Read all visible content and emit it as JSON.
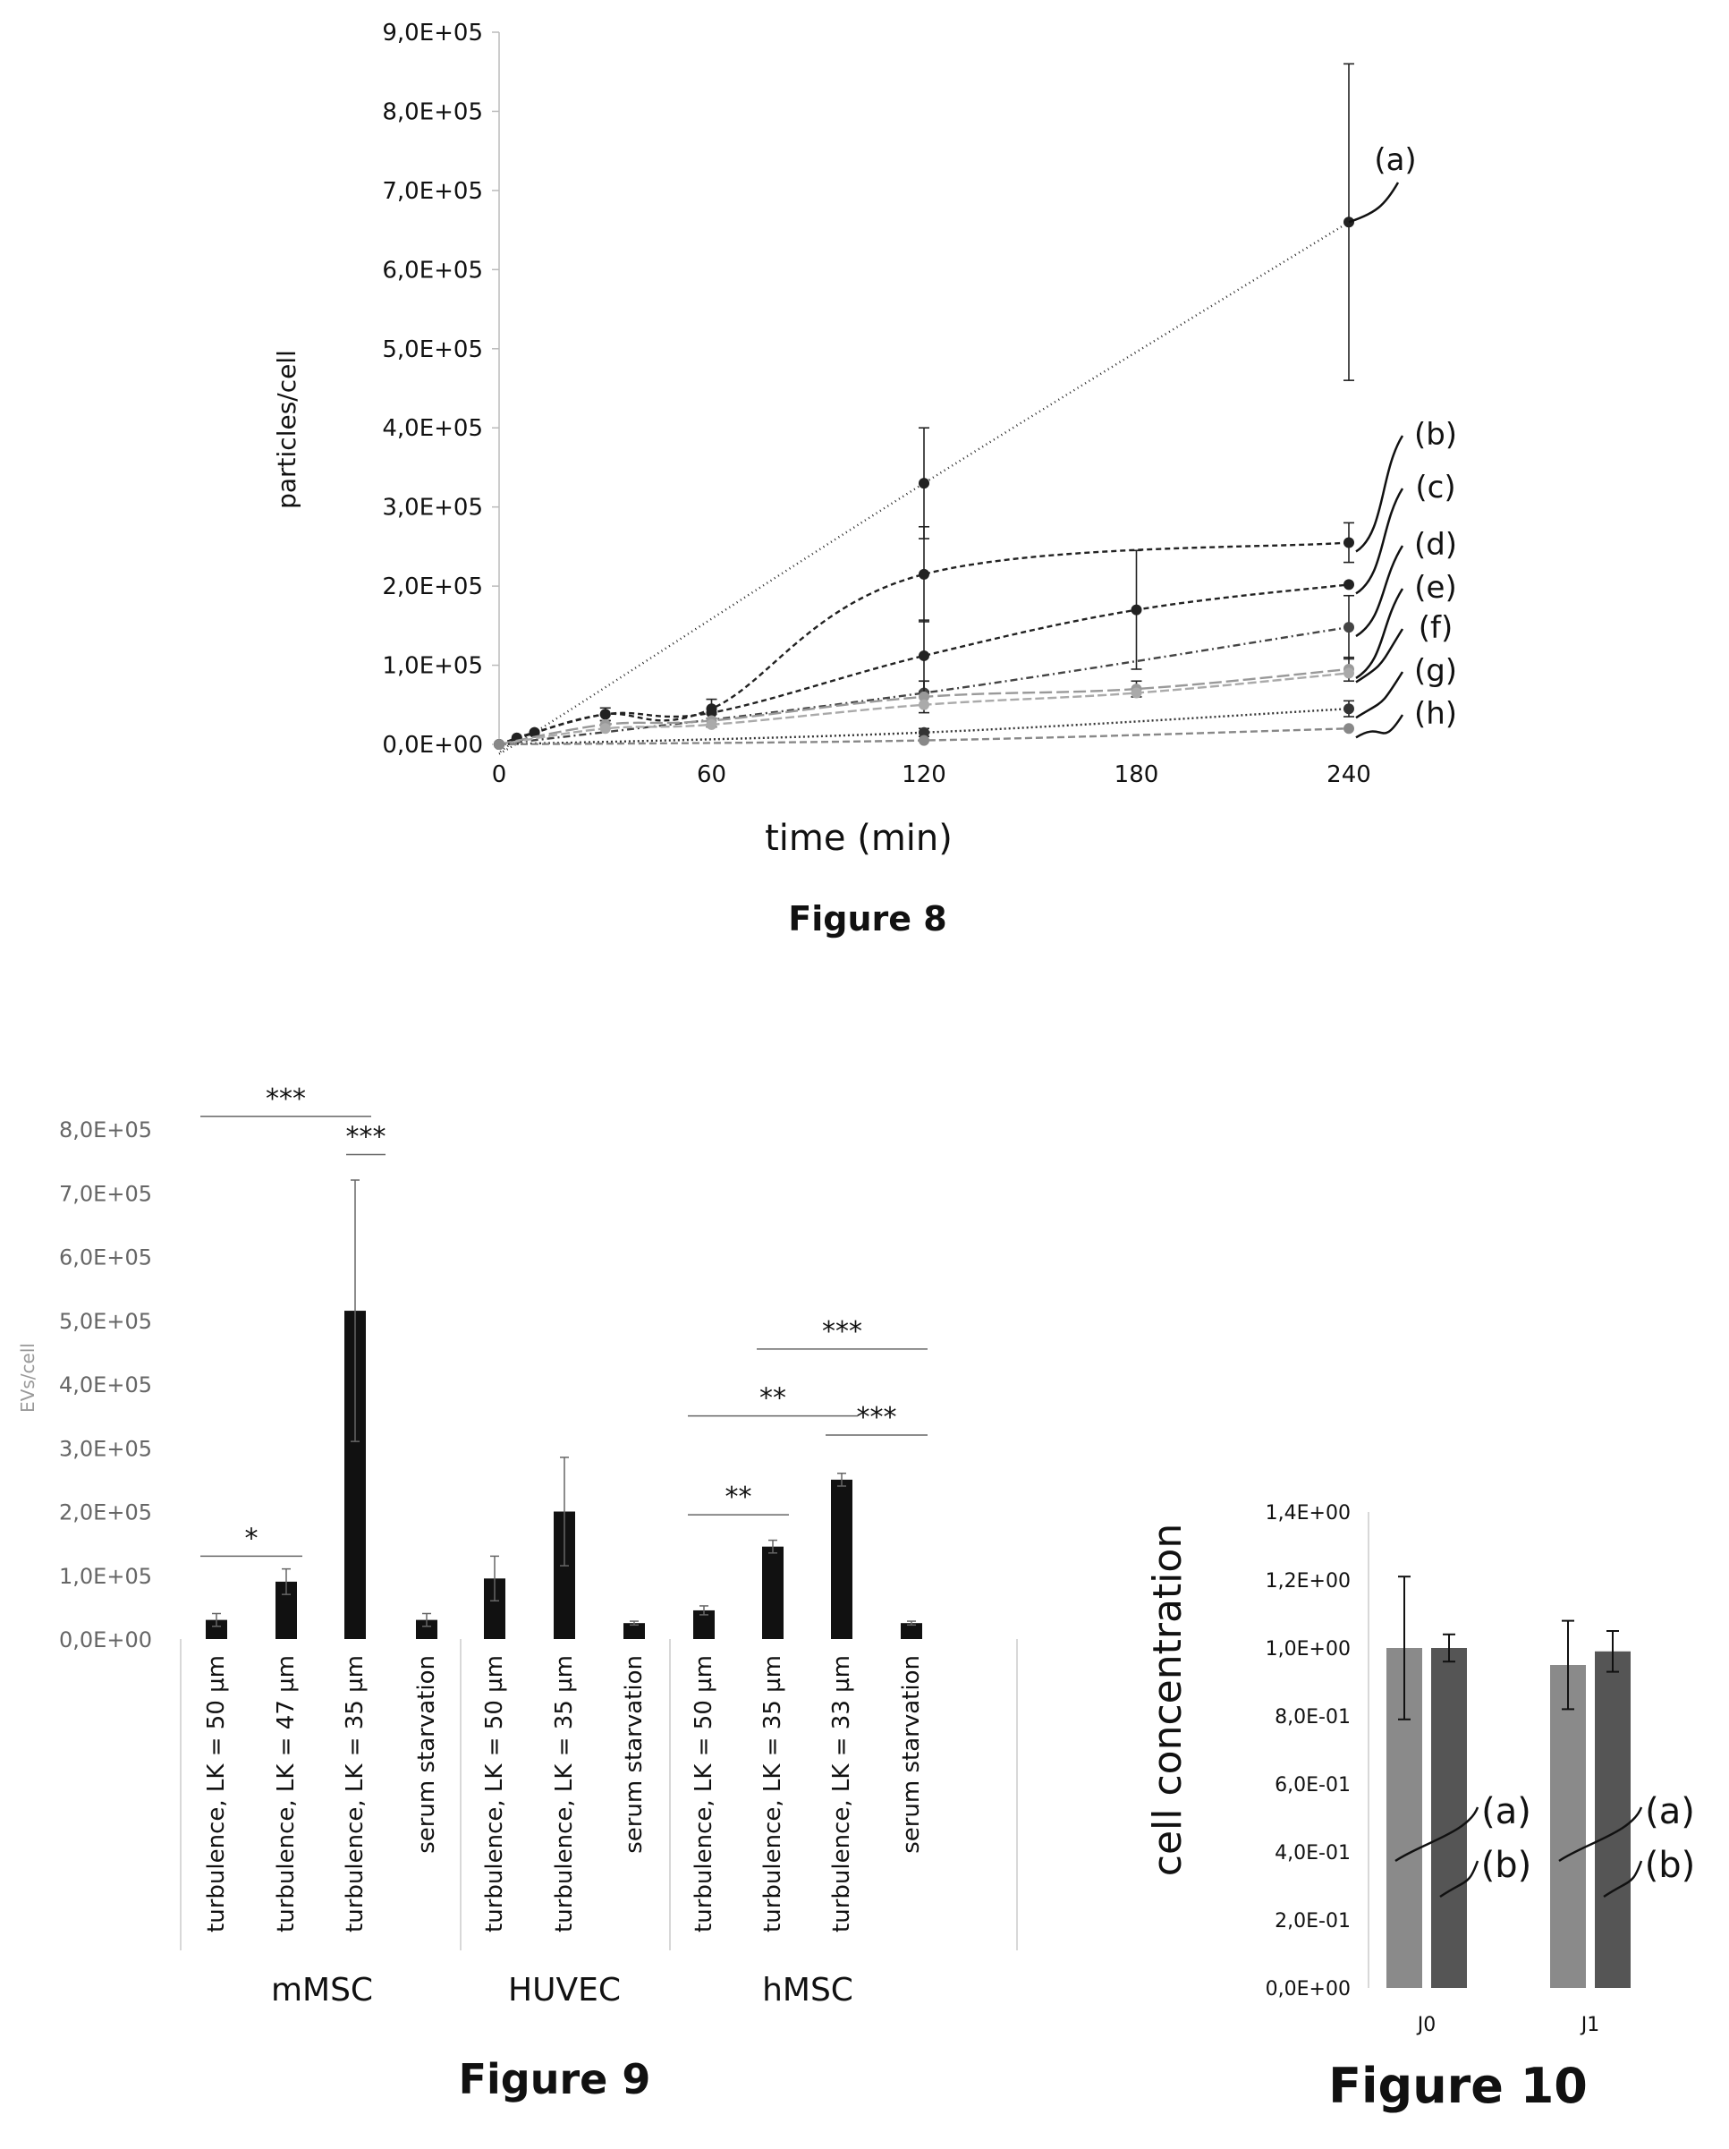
{
  "chart_data": [
    {
      "id": "fig8",
      "type": "line",
      "caption": "Figure 8",
      "xlabel": "time (min)",
      "ylabel": "particles/cell",
      "xticks": [
        "0",
        "60",
        "120",
        "180",
        "240"
      ],
      "yticks": [
        "0,0E+00",
        "1,0E+05",
        "2,0E+05",
        "3,0E+05",
        "4,0E+05",
        "5,0E+05",
        "6,0E+05",
        "7,0E+05",
        "8,0E+05",
        "9,0E+05"
      ],
      "xlim": [
        0,
        240
      ],
      "ylim": [
        0,
        900000
      ],
      "series": [
        {
          "name": "(a)",
          "color": "#222222",
          "dash": "1 4",
          "marker": true,
          "x": [
            0,
            5,
            10,
            120,
            240
          ],
          "y": [
            0,
            8000,
            15000,
            330000,
            660000
          ],
          "err": [
            0,
            0,
            0,
            70000,
            200000
          ]
        },
        {
          "name": "(b)",
          "color": "#222222",
          "dash": "6 4",
          "marker": true,
          "x": [
            0,
            5,
            10,
            30,
            60,
            120,
            240
          ],
          "y": [
            0,
            8000,
            15000,
            38000,
            45000,
            215000,
            255000
          ],
          "err": [
            0,
            0,
            0,
            8000,
            12000,
            60000,
            25000
          ]
        },
        {
          "name": "(c)",
          "color": "#222222",
          "dash": "6 4",
          "marker": true,
          "x": [
            0,
            30,
            60,
            120,
            180,
            240
          ],
          "y": [
            0,
            38000,
            40000,
            112000,
            170000,
            202000
          ],
          "err": [
            0,
            0,
            0,
            45000,
            75000,
            0
          ]
        },
        {
          "name": "(d)",
          "color": "#444444",
          "dash": "8 4 2 4",
          "marker": true,
          "x": [
            0,
            120,
            240
          ],
          "y": [
            0,
            65000,
            148000
          ],
          "err": [
            0,
            15000,
            40000
          ]
        },
        {
          "name": "(e)",
          "color": "#999999",
          "dash": "14 5",
          "marker": true,
          "x": [
            0,
            30,
            60,
            120,
            180,
            240
          ],
          "y": [
            0,
            25000,
            30000,
            60000,
            70000,
            95000
          ],
          "err": [
            0,
            5000,
            8000,
            20000,
            10000,
            15000
          ]
        },
        {
          "name": "(f)",
          "color": "#aaaaaa",
          "dash": "10 4",
          "marker": true,
          "x": [
            0,
            30,
            60,
            120,
            180,
            240
          ],
          "y": [
            0,
            20000,
            25000,
            50000,
            65000,
            90000
          ],
          "err": [
            0,
            0,
            0,
            0,
            0,
            0
          ]
        },
        {
          "name": "(g)",
          "color": "#333333",
          "dash": "2 3",
          "marker": true,
          "x": [
            0,
            120,
            240
          ],
          "y": [
            0,
            15000,
            45000
          ],
          "err": [
            0,
            5000,
            10000
          ]
        },
        {
          "name": "(h)",
          "color": "#888888",
          "dash": "8 4",
          "marker": true,
          "x": [
            0,
            120,
            240
          ],
          "y": [
            0,
            5000,
            20000
          ],
          "err": [
            0,
            0,
            0
          ]
        }
      ]
    },
    {
      "id": "fig9",
      "type": "bar",
      "caption": "Figure 9",
      "ylabel": "EVs/cell",
      "yticks": [
        "0,0E+00",
        "1,0E+05",
        "2,0E+05",
        "3,0E+05",
        "4,0E+05",
        "5,0E+05",
        "6,0E+05",
        "7,0E+05",
        "8,0E+05"
      ],
      "ylim": [
        0,
        800000
      ],
      "bar_color": "#111111",
      "groups": [
        "mMSC",
        "HUVEC",
        "hMSC"
      ],
      "categories": [
        "turbulence, LK = 50 µm",
        "turbulence, LK = 47 µm",
        "turbulence, LK = 35 µm",
        "serum starvation",
        "turbulence, LK = 50 µm",
        "turbulence, LK = 35 µm",
        "serum starvation",
        "turbulence, LK = 50 µm",
        "turbulence, LK = 35 µm",
        "turbulence, LK = 33 µm",
        "serum starvation"
      ],
      "category_group": [
        0,
        0,
        0,
        0,
        1,
        1,
        1,
        2,
        2,
        2,
        2
      ],
      "values": [
        30000,
        90000,
        515000,
        30000,
        95000,
        200000,
        25000,
        45000,
        145000,
        250000,
        25000
      ],
      "errors": [
        10000,
        20000,
        205000,
        10000,
        35000,
        85000,
        3000,
        7000,
        10000,
        10000,
        3000
      ],
      "significance": [
        {
          "label": "***",
          "from": 0,
          "to": 2,
          "level": 820000
        },
        {
          "label": "***",
          "from": 2,
          "to": 2,
          "level": 760000
        },
        {
          "label": "*",
          "from": 0,
          "to": 1,
          "level": 130000
        },
        {
          "label": "**",
          "from": 7,
          "to": 8,
          "level": 195000
        },
        {
          "label": "**",
          "from": 7,
          "to": 9,
          "level": 350000
        },
        {
          "label": "***",
          "from": 8,
          "to": 10,
          "level": 455000
        },
        {
          "label": "***",
          "from": 9,
          "to": 10,
          "level": 320000
        }
      ]
    },
    {
      "id": "fig10",
      "type": "bar",
      "caption": "Figure 10",
      "ylabel": "cell concentration",
      "yticks": [
        "0,0E+00",
        "2,0E-01",
        "4,0E-01",
        "6,0E-01",
        "8,0E-01",
        "1,0E+00",
        "1,2E+00",
        "1,4E+00"
      ],
      "ylim": [
        0,
        1.4
      ],
      "categories": [
        "J0",
        "J1"
      ],
      "series": [
        {
          "name": "(a)",
          "color": "#8a8a8a",
          "values": [
            1.0,
            0.95
          ],
          "errors": [
            0.21,
            0.13
          ]
        },
        {
          "name": "(b)",
          "color": "#555555",
          "values": [
            1.0,
            0.99
          ],
          "errors": [
            0.04,
            0.06
          ]
        }
      ]
    }
  ]
}
